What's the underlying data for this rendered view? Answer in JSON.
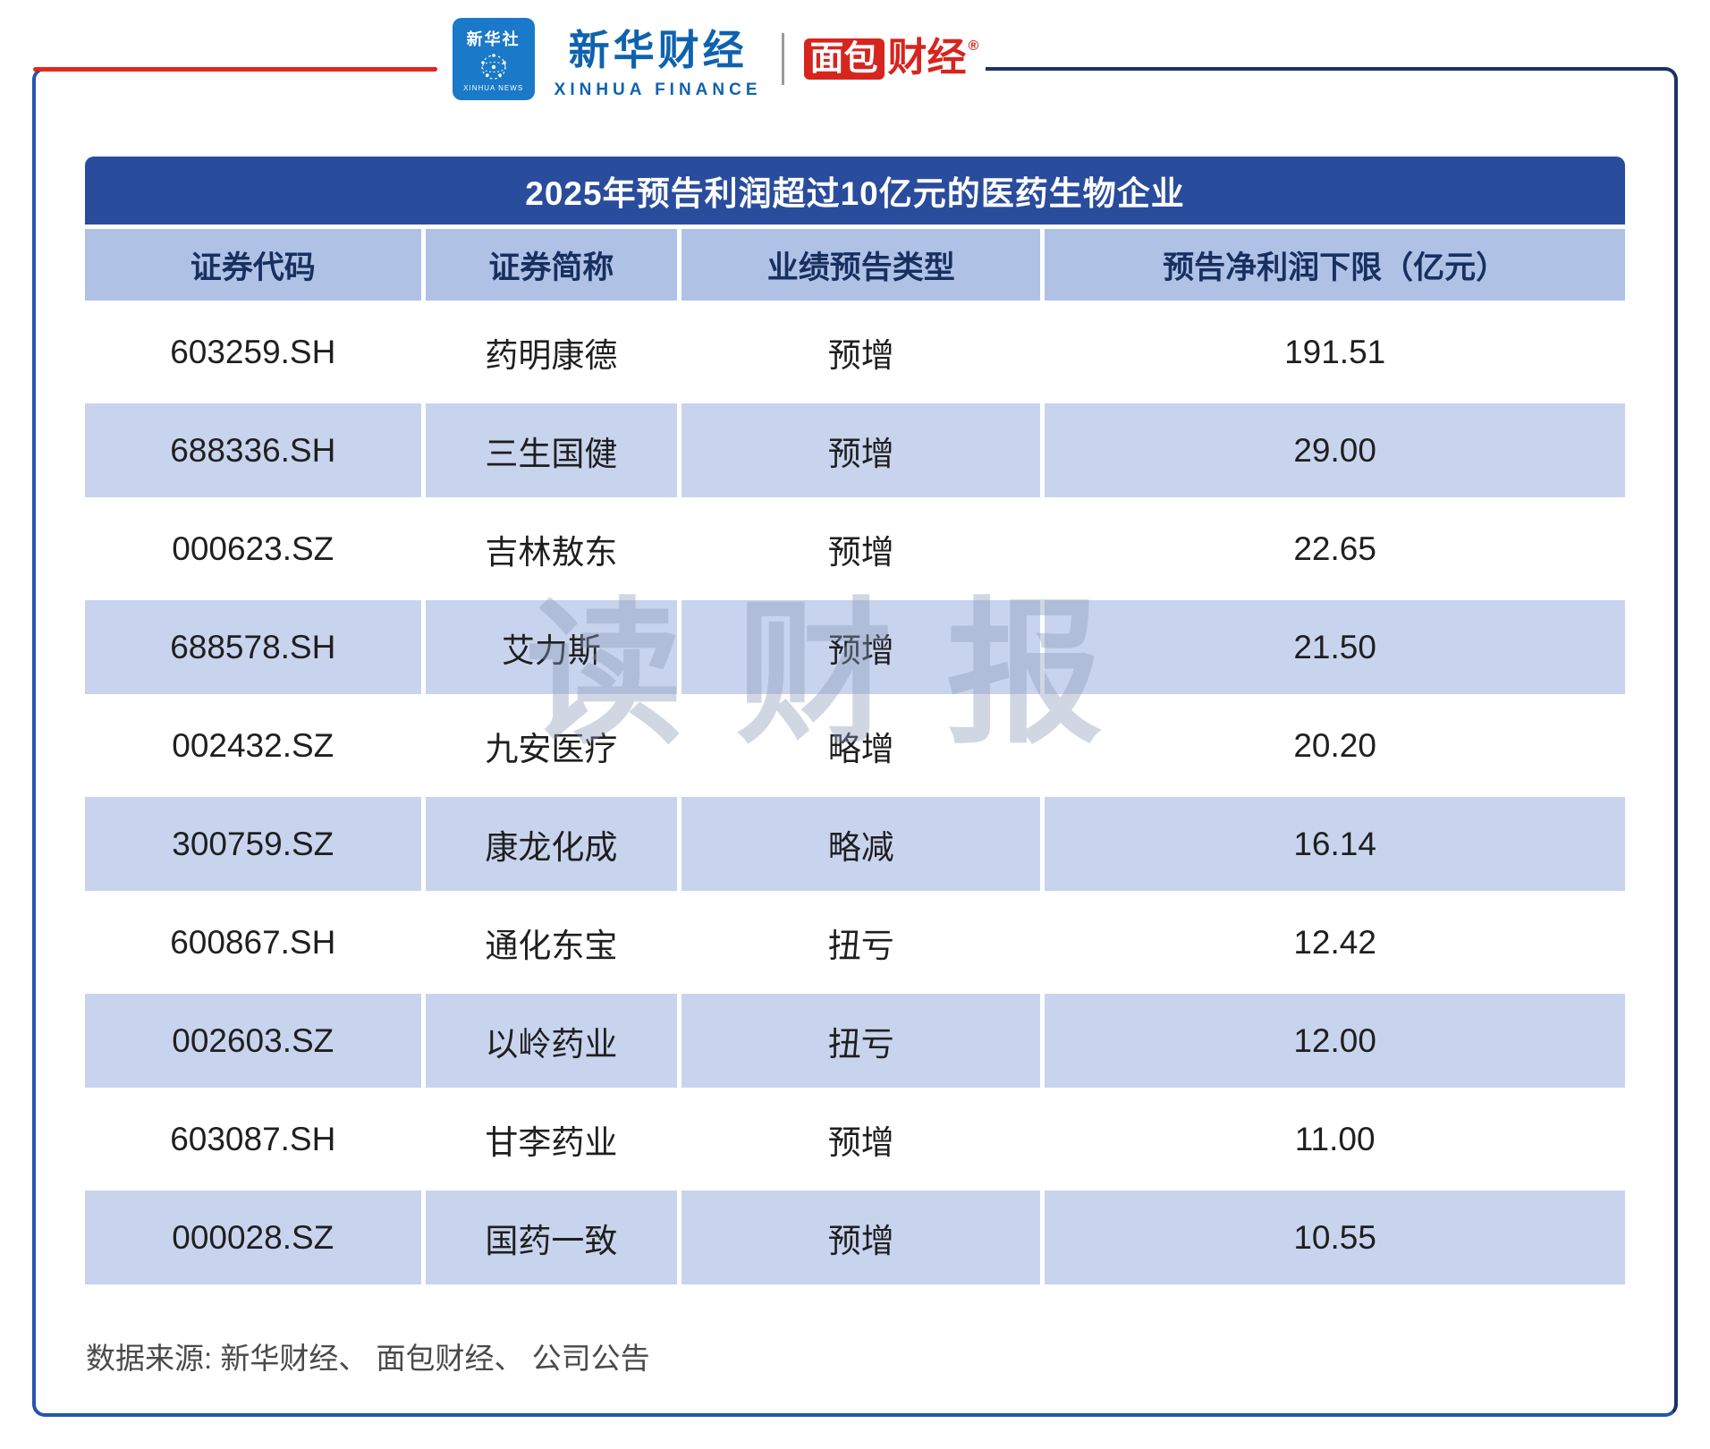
{
  "header": {
    "xinhua_news": {
      "name": "新华社",
      "sub": "XINHUA NEWS"
    },
    "xinhua_finance": {
      "name": "新华财经",
      "sub": "XINHUA FINANCE"
    },
    "bread_finance": {
      "box": "面包",
      "rest": "财经",
      "reg": "®"
    }
  },
  "table": {
    "title": "2025年预告利润超过10亿元的医药生物企业",
    "columns": [
      "证券代码",
      "证券简称",
      "业绩预告类型",
      "预告净利润下限（亿元）"
    ],
    "rows": [
      [
        "603259.SH",
        "药明康德",
        "预增",
        "191.51"
      ],
      [
        "688336.SH",
        "三生国健",
        "预增",
        "29.00"
      ],
      [
        "000623.SZ",
        "吉林敖东",
        "预增",
        "22.65"
      ],
      [
        "688578.SH",
        "艾力斯",
        "预增",
        "21.50"
      ],
      [
        "002432.SZ",
        "九安医疗",
        "略增",
        "20.20"
      ],
      [
        "300759.SZ",
        "康龙化成",
        "略减",
        "16.14"
      ],
      [
        "600867.SH",
        "通化东宝",
        "扭亏",
        "12.42"
      ],
      [
        "002603.SZ",
        "以岭药业",
        "扭亏",
        "12.00"
      ],
      [
        "603087.SH",
        "甘李药业",
        "预增",
        "11.00"
      ],
      [
        "000028.SZ",
        "国药一致",
        "预增",
        "10.55"
      ]
    ]
  },
  "chart_data": {
    "type": "table",
    "title": "2025年预告利润超过10亿元的医药生物企业",
    "columns": [
      "证券代码",
      "证券简称",
      "业绩预告类型",
      "预告净利润下限（亿元）"
    ],
    "rows": [
      [
        "603259.SH",
        "药明康德",
        "预增",
        191.51
      ],
      [
        "688336.SH",
        "三生国健",
        "预增",
        29.0
      ],
      [
        "000623.SZ",
        "吉林敖东",
        "预增",
        22.65
      ],
      [
        "688578.SH",
        "艾力斯",
        "预增",
        21.5
      ],
      [
        "002432.SZ",
        "九安医疗",
        "略增",
        20.2
      ],
      [
        "300759.SZ",
        "康龙化成",
        "略减",
        16.14
      ],
      [
        "600867.SH",
        "通化东宝",
        "扭亏",
        12.42
      ],
      [
        "002603.SZ",
        "以岭药业",
        "扭亏",
        12.0
      ],
      [
        "603087.SH",
        "甘李药业",
        "预增",
        11.0
      ],
      [
        "000028.SZ",
        "国药一致",
        "预增",
        10.55
      ]
    ]
  },
  "watermark": "读财报",
  "footer": "数据来源: 新华财经、 面包财经、 公司公告",
  "colors": {
    "title_bar_blue": "#2a4c9c",
    "header_row_blue": "#b0c1e6",
    "alt_row_blue": "#c8d4ee",
    "frame_blue": "#2456ad",
    "frame_navy": "#1b3263",
    "brand_red": "#e32620",
    "xinhua_blue": "#0f62ae"
  }
}
